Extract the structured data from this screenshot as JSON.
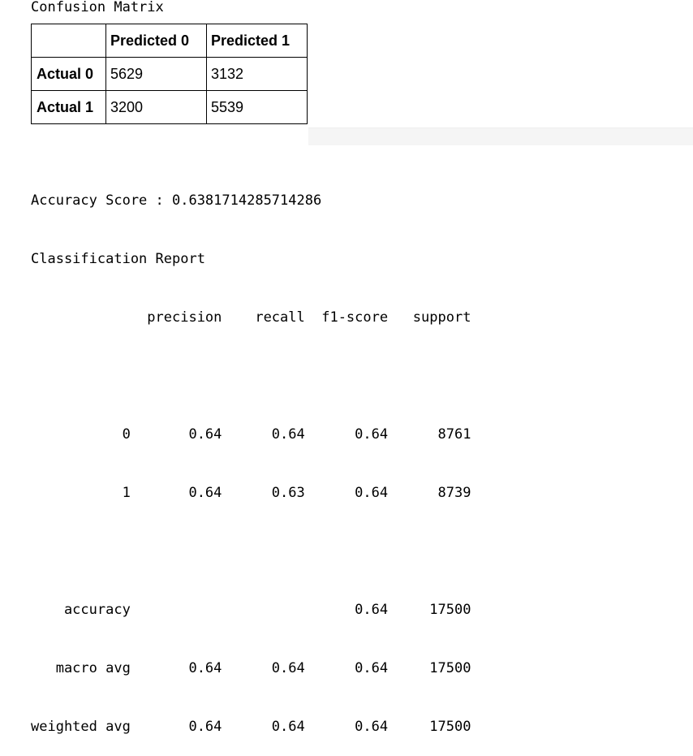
{
  "confusion": {
    "title": "Confusion Matrix",
    "header": [
      "",
      "Predicted 0",
      "Predicted 1"
    ],
    "rows": [
      {
        "label": "Actual 0",
        "values": [
          "5629",
          "3132"
        ]
      },
      {
        "label": "Actual 1",
        "values": [
          "3200",
          "5539"
        ]
      }
    ]
  },
  "report": {
    "lines": [
      "Accuracy Score : 0.6381714285714286",
      "Classification Report",
      "              precision    recall  f1-score   support",
      "",
      "           0       0.64      0.64      0.64      8761",
      "           1       0.64      0.63      0.64      8739",
      "",
      "    accuracy                           0.64     17500",
      "   macro avg       0.64      0.64      0.64     17500",
      "weighted avg       0.64      0.64      0.64     17500"
    ]
  }
}
